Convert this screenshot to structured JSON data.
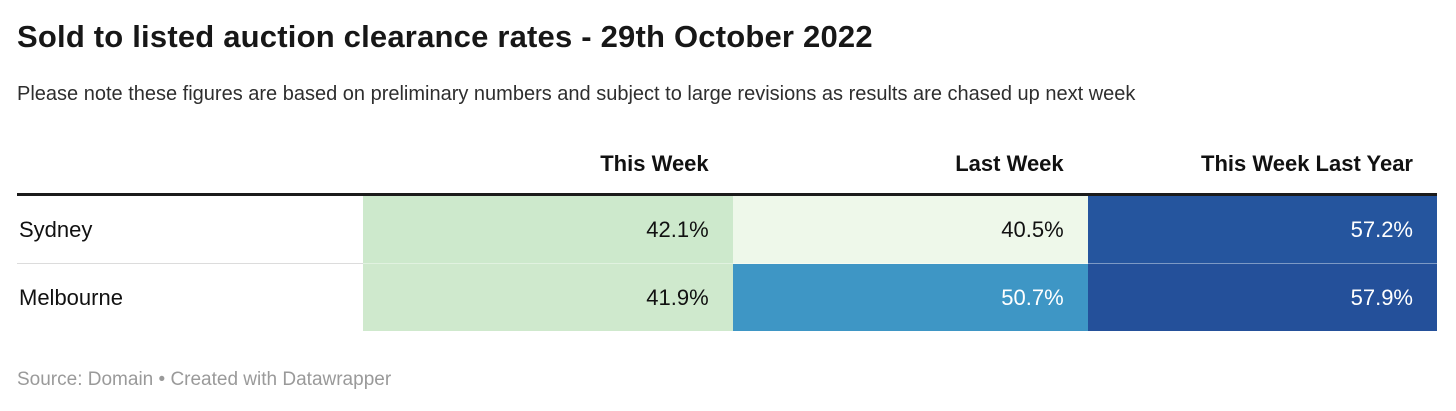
{
  "header": {
    "title": "Sold to listed auction clearance rates - 29th October 2022",
    "subtitle": "Please note these figures are based on preliminary numbers and subject to large revisions as results are chased up next week"
  },
  "table": {
    "columns": [
      "",
      "This Week",
      "Last Week",
      "This Week Last Year"
    ],
    "rows": [
      {
        "label": "Sydney",
        "cells": [
          {
            "text": "42.1%",
            "bg": "#cde9cc",
            "fg": "#111111"
          },
          {
            "text": "40.5%",
            "bg": "#eef8ea",
            "fg": "#111111"
          },
          {
            "text": "57.2%",
            "bg": "#25559e",
            "fg": "#ffffff"
          }
        ]
      },
      {
        "label": "Melbourne",
        "cells": [
          {
            "text": "41.9%",
            "bg": "#cfe9cd",
            "fg": "#111111"
          },
          {
            "text": "50.7%",
            "bg": "#3e96c5",
            "fg": "#ffffff"
          },
          {
            "text": "57.9%",
            "bg": "#24509a",
            "fg": "#ffffff"
          }
        ]
      }
    ]
  },
  "footer": {
    "text": "Source: Domain • Created with Datawrapper"
  },
  "colors": {
    "header_rule": "#1b1b1b",
    "row_divider": "#dcdcdc",
    "source_text": "#9a9a9a",
    "green_mid": "#cde9cc",
    "green_pale": "#eef8ea",
    "blue_mid": "#3e96c5",
    "blue_dark_sydney": "#25559e",
    "blue_dark_melbourne": "#24509a"
  },
  "chart_data": {
    "type": "table",
    "title": "Sold to listed auction clearance rates - 29th October 2022",
    "subtitle": "Please note these figures are based on preliminary numbers and subject to large revisions as results are chased up next week",
    "categories": [
      "Sydney",
      "Melbourne"
    ],
    "series": [
      {
        "name": "This Week",
        "values": [
          42.1,
          41.9
        ]
      },
      {
        "name": "Last Week",
        "values": [
          40.5,
          50.7
        ]
      },
      {
        "name": "This Week Last Year",
        "values": [
          57.2,
          57.9
        ]
      }
    ],
    "unit": "%",
    "value_format": "percent",
    "heatmap_coloring": true,
    "source": "Source: Domain • Created with Datawrapper"
  }
}
